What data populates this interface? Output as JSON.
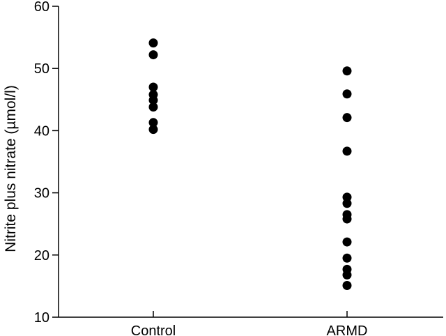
{
  "chart_data": {
    "type": "scatter",
    "title": "",
    "xlabel": "",
    "ylabel": "Nitrite plus nitrate (µmol/l)",
    "ylim": [
      10,
      60
    ],
    "yticks": [
      "10",
      "20",
      "30",
      "40",
      "50",
      "60"
    ],
    "categories": [
      "Control",
      "ARMD"
    ],
    "grid": false,
    "legend": "none",
    "marker_color": "#000000",
    "series": [
      {
        "category": "Control",
        "values": [
          54.1,
          52.2,
          47.0,
          45.8,
          44.9,
          43.8,
          41.3,
          40.2
        ]
      },
      {
        "category": "ARMD",
        "values": [
          49.6,
          45.9,
          42.1,
          36.7,
          29.3,
          28.3,
          26.5,
          25.8,
          22.1,
          19.5,
          17.7,
          16.8,
          15.1
        ]
      }
    ]
  }
}
